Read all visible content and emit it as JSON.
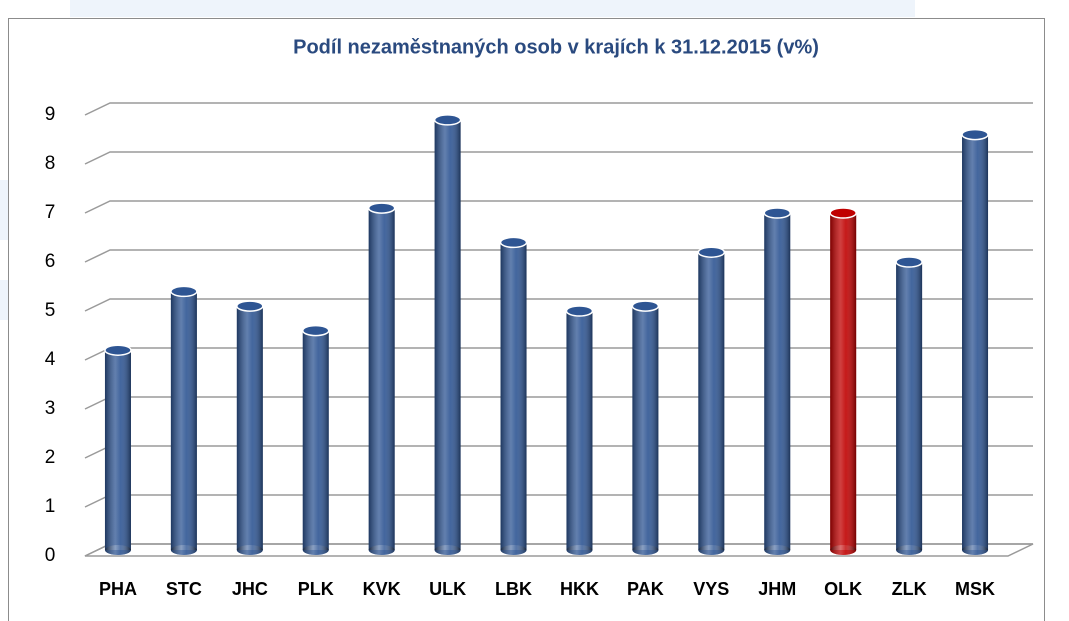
{
  "chart_data": {
    "type": "bar",
    "title": "Podíl nezaměstnaných osob v krajích k 31.12.2015 (v%)",
    "categories": [
      "PHA",
      "STC",
      "JHC",
      "PLK",
      "KVK",
      "ULK",
      "LBK",
      "HKK",
      "PAK",
      "VYS",
      "JHM",
      "OLK",
      "ZLK",
      "MSK"
    ],
    "values": [
      4.2,
      5.4,
      5.1,
      4.6,
      7.1,
      8.9,
      6.4,
      5.0,
      5.1,
      6.2,
      7.0,
      7.0,
      6.0,
      8.6
    ],
    "colors": [
      "#2e5593",
      "#2e5593",
      "#2e5593",
      "#2e5593",
      "#2e5593",
      "#2e5593",
      "#2e5593",
      "#2e5593",
      "#2e5593",
      "#2e5593",
      "#2e5593",
      "#c00000",
      "#2e5593",
      "#2e5593"
    ],
    "ylim": [
      0,
      9
    ],
    "yticks": [
      0,
      1,
      2,
      3,
      4,
      5,
      6,
      7,
      8,
      9
    ],
    "grid": true
  }
}
